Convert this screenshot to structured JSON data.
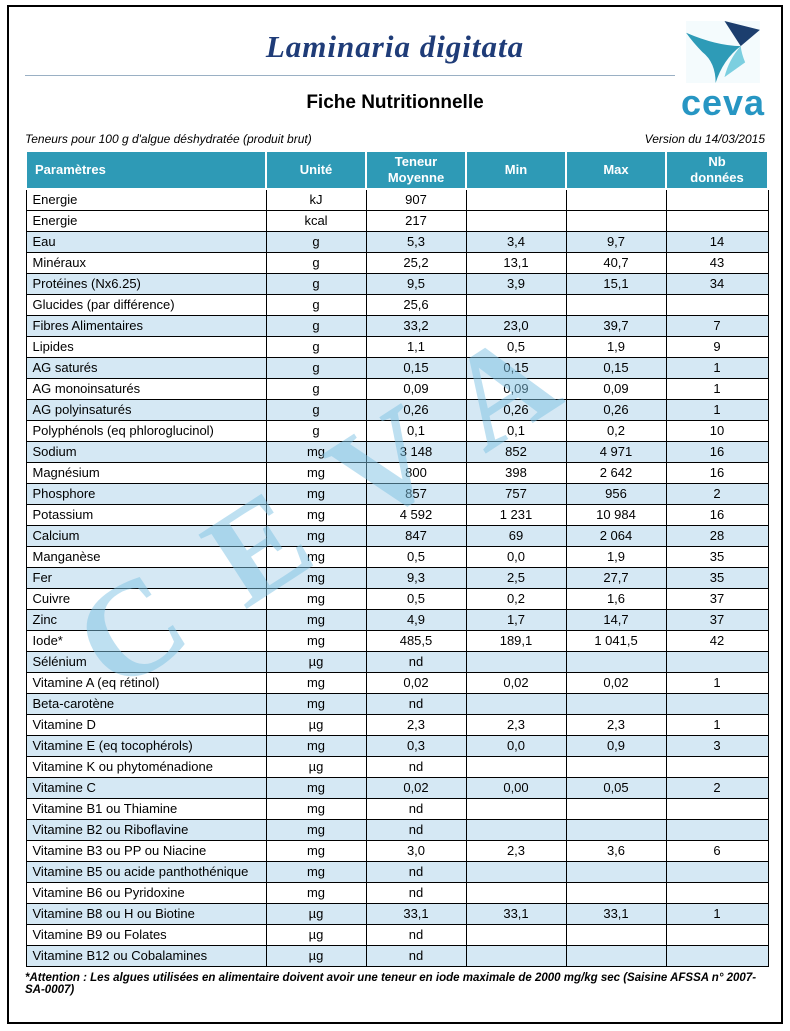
{
  "page": {
    "title": "Laminaria digitata",
    "subtitle": "Fiche Nutritionnelle",
    "serving_note": "Teneurs pour 100 g d'algue déshydratée (produit brut)",
    "version": "Version du 14/03/2015",
    "watermark": "CEVA",
    "logo_text": "ceva",
    "footnote": "*Attention : Les algues utilisées en alimentaire doivent avoir une teneur en iode maximale de 2000 mg/kg sec (Saisine AFSSA n° 2007-SA-0007)"
  },
  "colors": {
    "header_bg": "#2E9AB6",
    "row_alt_bg": "#D5E8F4",
    "title_color": "#1F3C78",
    "logo_text_color": "#2796C3",
    "watermark_color": "#7FC3E4",
    "border_color": "#000000",
    "logo_navy": "#1C3E6E",
    "logo_teal": "#2E9BB7",
    "logo_light": "#7CCFE0"
  },
  "table": {
    "headers": [
      "Paramètres",
      "Unité",
      "Teneur\nMoyenne",
      "Min",
      "Max",
      "Nb\ndonnées"
    ],
    "rows": [
      {
        "param": "Energie",
        "unit": "kJ",
        "mean": "907",
        "min": "",
        "max": "",
        "n": "",
        "shaded": false
      },
      {
        "param": "Energie",
        "unit": "kcal",
        "mean": "217",
        "min": "",
        "max": "",
        "n": "",
        "shaded": false
      },
      {
        "param": "Eau",
        "unit": "g",
        "mean": "5,3",
        "min": "3,4",
        "max": "9,7",
        "n": "14",
        "shaded": true
      },
      {
        "param": "Minéraux",
        "unit": "g",
        "mean": "25,2",
        "min": "13,1",
        "max": "40,7",
        "n": "43",
        "shaded": false
      },
      {
        "param": "Protéines (Nx6.25)",
        "unit": "g",
        "mean": "9,5",
        "min": "3,9",
        "max": "15,1",
        "n": "34",
        "shaded": true
      },
      {
        "param": "Glucides (par différence)",
        "unit": "g",
        "mean": "25,6",
        "min": "",
        "max": "",
        "n": "",
        "shaded": false
      },
      {
        "param": "Fibres Alimentaires",
        "unit": "g",
        "mean": "33,2",
        "min": "23,0",
        "max": "39,7",
        "n": "7",
        "shaded": true
      },
      {
        "param": "Lipides",
        "unit": "g",
        "mean": "1,1",
        "min": "0,5",
        "max": "1,9",
        "n": "9",
        "shaded": false
      },
      {
        "param": "AG saturés",
        "unit": "g",
        "mean": "0,15",
        "min": "0,15",
        "max": "0,15",
        "n": "1",
        "shaded": true
      },
      {
        "param": "AG monoinsaturés",
        "unit": "g",
        "mean": "0,09",
        "min": "0,09",
        "max": "0,09",
        "n": "1",
        "shaded": false
      },
      {
        "param": "AG polyinsaturés",
        "unit": "g",
        "mean": "0,26",
        "min": "0,26",
        "max": "0,26",
        "n": "1",
        "shaded": true
      },
      {
        "param": "Polyphénols (eq phloroglucinol)",
        "unit": "g",
        "mean": "0,1",
        "min": "0,1",
        "max": "0,2",
        "n": "10",
        "shaded": false
      },
      {
        "param": "Sodium",
        "unit": "mg",
        "mean": "3 148",
        "min": "852",
        "max": "4 971",
        "n": "16",
        "shaded": true
      },
      {
        "param": "Magnésium",
        "unit": "mg",
        "mean": "800",
        "min": "398",
        "max": "2 642",
        "n": "16",
        "shaded": false
      },
      {
        "param": "Phosphore",
        "unit": "mg",
        "mean": "857",
        "min": "757",
        "max": "956",
        "n": "2",
        "shaded": true
      },
      {
        "param": "Potassium",
        "unit": "mg",
        "mean": "4 592",
        "min": "1 231",
        "max": "10 984",
        "n": "16",
        "shaded": false
      },
      {
        "param": "Calcium",
        "unit": "mg",
        "mean": "847",
        "min": "69",
        "max": "2 064",
        "n": "28",
        "shaded": true
      },
      {
        "param": "Manganèse",
        "unit": "mg",
        "mean": "0,5",
        "min": "0,0",
        "max": "1,9",
        "n": "35",
        "shaded": false
      },
      {
        "param": "Fer",
        "unit": "mg",
        "mean": "9,3",
        "min": "2,5",
        "max": "27,7",
        "n": "35",
        "shaded": true
      },
      {
        "param": "Cuivre",
        "unit": "mg",
        "mean": "0,5",
        "min": "0,2",
        "max": "1,6",
        "n": "37",
        "shaded": false
      },
      {
        "param": "Zinc",
        "unit": "mg",
        "mean": "4,9",
        "min": "1,7",
        "max": "14,7",
        "n": "37",
        "shaded": true
      },
      {
        "param": "Iode*",
        "unit": "mg",
        "mean": "485,5",
        "min": "189,1",
        "max": "1 041,5",
        "n": "42",
        "shaded": false
      },
      {
        "param": "Sélénium",
        "unit": "µg",
        "mean": "nd",
        "min": "",
        "max": "",
        "n": "",
        "shaded": true
      },
      {
        "param": "Vitamine A (eq rétinol)",
        "unit": "mg",
        "mean": "0,02",
        "min": "0,02",
        "max": "0,02",
        "n": "1",
        "shaded": false
      },
      {
        "param": "Beta-carotène",
        "unit": "mg",
        "mean": "nd",
        "min": "",
        "max": "",
        "n": "",
        "shaded": true
      },
      {
        "param": "Vitamine D",
        "unit": "µg",
        "mean": "2,3",
        "min": "2,3",
        "max": "2,3",
        "n": "1",
        "shaded": false
      },
      {
        "param": "Vitamine E (eq tocophérols)",
        "unit": "mg",
        "mean": "0,3",
        "min": "0,0",
        "max": "0,9",
        "n": "3",
        "shaded": true
      },
      {
        "param": "Vitamine K ou phytoménadione",
        "unit": "µg",
        "mean": "nd",
        "min": "",
        "max": "",
        "n": "",
        "shaded": false
      },
      {
        "param": "Vitamine C",
        "unit": "mg",
        "mean": "0,02",
        "min": "0,00",
        "max": "0,05",
        "n": "2",
        "shaded": true
      },
      {
        "param": "Vitamine B1 ou Thiamine",
        "unit": "mg",
        "mean": "nd",
        "min": "",
        "max": "",
        "n": "",
        "shaded": false
      },
      {
        "param": "Vitamine B2 ou Riboflavine",
        "unit": "mg",
        "mean": "nd",
        "min": "",
        "max": "",
        "n": "",
        "shaded": true
      },
      {
        "param": "Vitamine B3 ou PP ou Niacine",
        "unit": "mg",
        "mean": "3,0",
        "min": "2,3",
        "max": "3,6",
        "n": "6",
        "shaded": false
      },
      {
        "param": "Vitamine B5 ou acide panthothénique",
        "unit": "mg",
        "mean": "nd",
        "min": "",
        "max": "",
        "n": "",
        "shaded": true
      },
      {
        "param": "Vitamine B6 ou Pyridoxine",
        "unit": "mg",
        "mean": "nd",
        "min": "",
        "max": "",
        "n": "",
        "shaded": false
      },
      {
        "param": "Vitamine B8 ou H ou Biotine",
        "unit": "µg",
        "mean": "33,1",
        "min": "33,1",
        "max": "33,1",
        "n": "1",
        "shaded": true
      },
      {
        "param": "Vitamine B9 ou Folates",
        "unit": "µg",
        "mean": "nd",
        "min": "",
        "max": "",
        "n": "",
        "shaded": false
      },
      {
        "param": "Vitamine B12 ou Cobalamines",
        "unit": "µg",
        "mean": "nd",
        "min": "",
        "max": "",
        "n": "",
        "shaded": true
      }
    ]
  }
}
